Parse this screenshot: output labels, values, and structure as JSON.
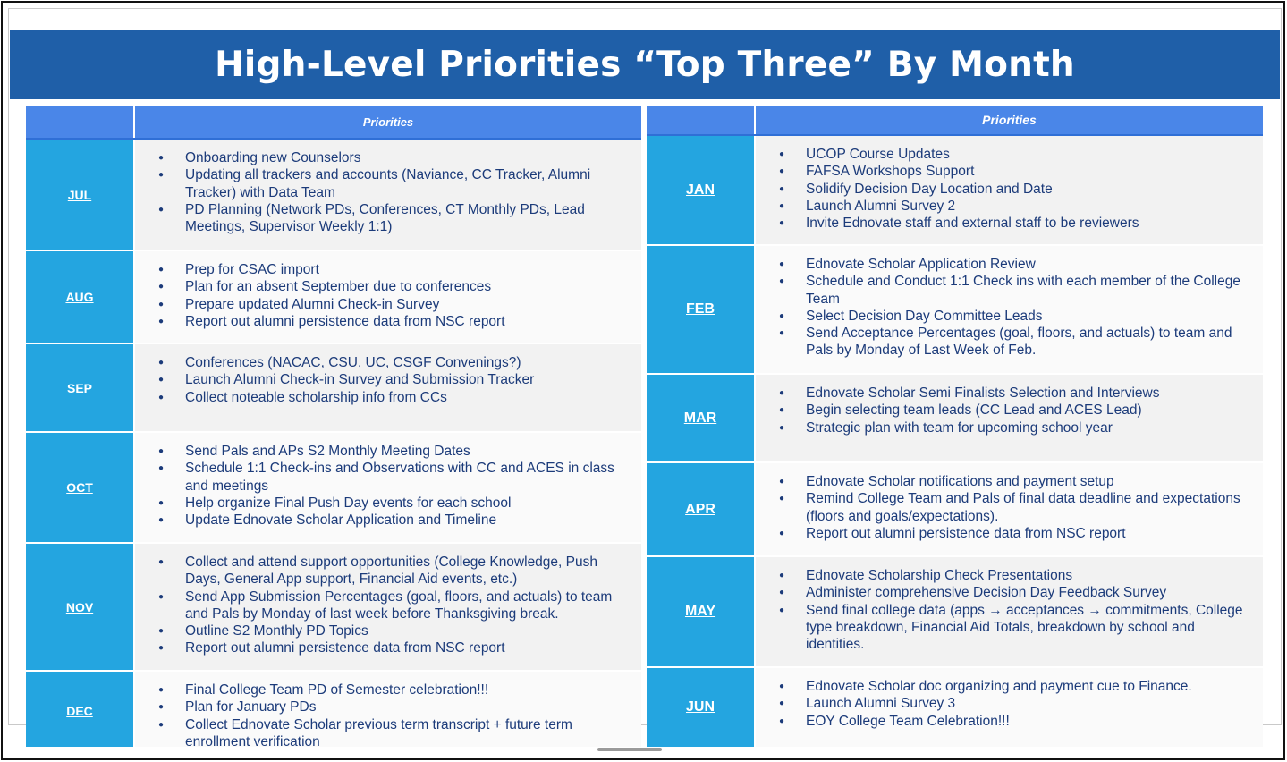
{
  "title": "High-Level Priorities “Top Three” By Month",
  "left_table": {
    "header": "Priorities",
    "rows": [
      {
        "month": "JUL",
        "items": [
          " Onboarding new Counselors",
          " Updating all trackers and accounts (Naviance, CC Tracker, Alumni Tracker) with Data Team",
          "PD Planning (Network PDs, Conferences, CT Monthly PDs, Lead Meetings, Supervisor Weekly 1:1)"
        ]
      },
      {
        "month": "AUG",
        "items": [
          "Prep for CSAC import",
          "Plan for an absent September due to conferences",
          "Prepare updated Alumni Check-in Survey",
          "Report out alumni persistence data from NSC report"
        ]
      },
      {
        "month": "SEP",
        "items": [
          " Conferences (NACAC, CSU, UC, CSGF Convenings?)",
          " Launch Alumni Check-in Survey and Submission Tracker",
          "Collect noteable scholarship info from CCs"
        ]
      },
      {
        "month": "OCT",
        "items": [
          "Send Pals and APs S2 Monthly Meeting Dates",
          "Schedule 1:1 Check-ins and Observations with CC and ACES in class and meetings",
          "Help organize Final Push Day events for each school",
          "Update Ednovate Scholar Application and Timeline"
        ]
      },
      {
        "month": "NOV",
        "items": [
          "Collect and attend support opportunities (College Knowledge, Push Days, General App support, Financial Aid events, etc.)",
          "Send App Submission Percentages (goal, floors, and actuals) to team and Pals by Monday of last week before Thanksgiving break.",
          "Outline S2 Monthly PD Topics",
          "Report out alumni persistence data from NSC report"
        ]
      },
      {
        "month": "DEC",
        "items": [
          " Final College Team PD of Semester celebration!!!",
          " Plan for January PDs",
          "Collect Ednovate Scholar previous term transcript + future term enrollment verification"
        ]
      }
    ]
  },
  "right_table": {
    "header": "Priorities",
    "rows": [
      {
        "month": "JAN",
        "items": [
          "UCOP Course Updates",
          "FAFSA Workshops Support",
          "Solidify Decision Day Location and Date",
          "Launch Alumni Survey 2",
          "Invite Ednovate staff and external staff to be reviewers"
        ]
      },
      {
        "month": "FEB",
        "items": [
          "Ednovate Scholar Application Review",
          "Schedule and Conduct 1:1 Check ins with each member of the College Team",
          "Select Decision Day Committee Leads",
          "Send Acceptance Percentages (goal, floors, and actuals) to team and Pals by Monday of Last Week of Feb."
        ]
      },
      {
        "month": "MAR",
        "items": [
          "Ednovate Scholar Semi Finalists Selection and Interviews",
          "Begin selecting team leads (CC Lead and ACES Lead)",
          "Strategic plan with team for upcoming school year"
        ]
      },
      {
        "month": "APR",
        "items": [
          "Ednovate Scholar notifications and payment setup",
          "Remind College Team and Pals of final data deadline and expectations (floors and goals/expectations).",
          "Report out alumni persistence data from NSC report"
        ]
      },
      {
        "month": "MAY",
        "items": [
          "Ednovate Scholarship Check Presentations",
          "Administer comprehensive Decision Day Feedback Survey",
          "Send final college data (apps → acceptances → commitments, College type breakdown, Financial Aid Totals, breakdown by school and identities."
        ]
      },
      {
        "month": "JUN",
        "items": [
          "Ednovate Scholar doc organizing and payment cue to Finance.",
          "Launch Alumni Survey 3",
          "EOY College Team Celebration!!!"
        ]
      }
    ]
  }
}
